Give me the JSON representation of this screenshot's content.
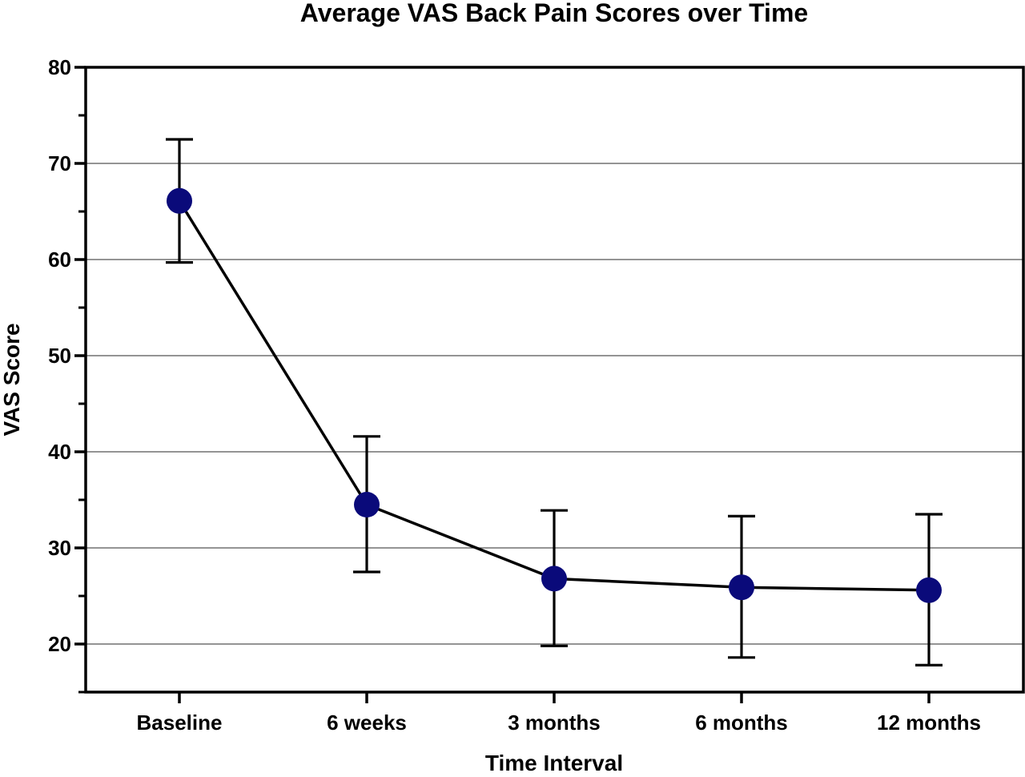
{
  "chart_data": {
    "type": "line",
    "title": "Average VAS Back Pain Scores over Time",
    "xlabel": "Time Interval",
    "ylabel": "VAS Score",
    "categories": [
      "Baseline",
      "6 weeks",
      "3 months",
      "6 months",
      "12 months"
    ],
    "series": [
      {
        "values": [
          66.1,
          34.5,
          26.8,
          25.9,
          25.6
        ],
        "error_low": [
          59.7,
          27.5,
          19.8,
          18.6,
          17.8
        ],
        "error_high": [
          72.5,
          41.6,
          33.9,
          33.3,
          33.5
        ],
        "marker_color": "#0a0a7a",
        "line_color": "#000000"
      }
    ],
    "ylim": [
      15,
      80
    ],
    "yticks": [
      20,
      30,
      40,
      50,
      60,
      70,
      80
    ],
    "grid": "horizontal"
  }
}
